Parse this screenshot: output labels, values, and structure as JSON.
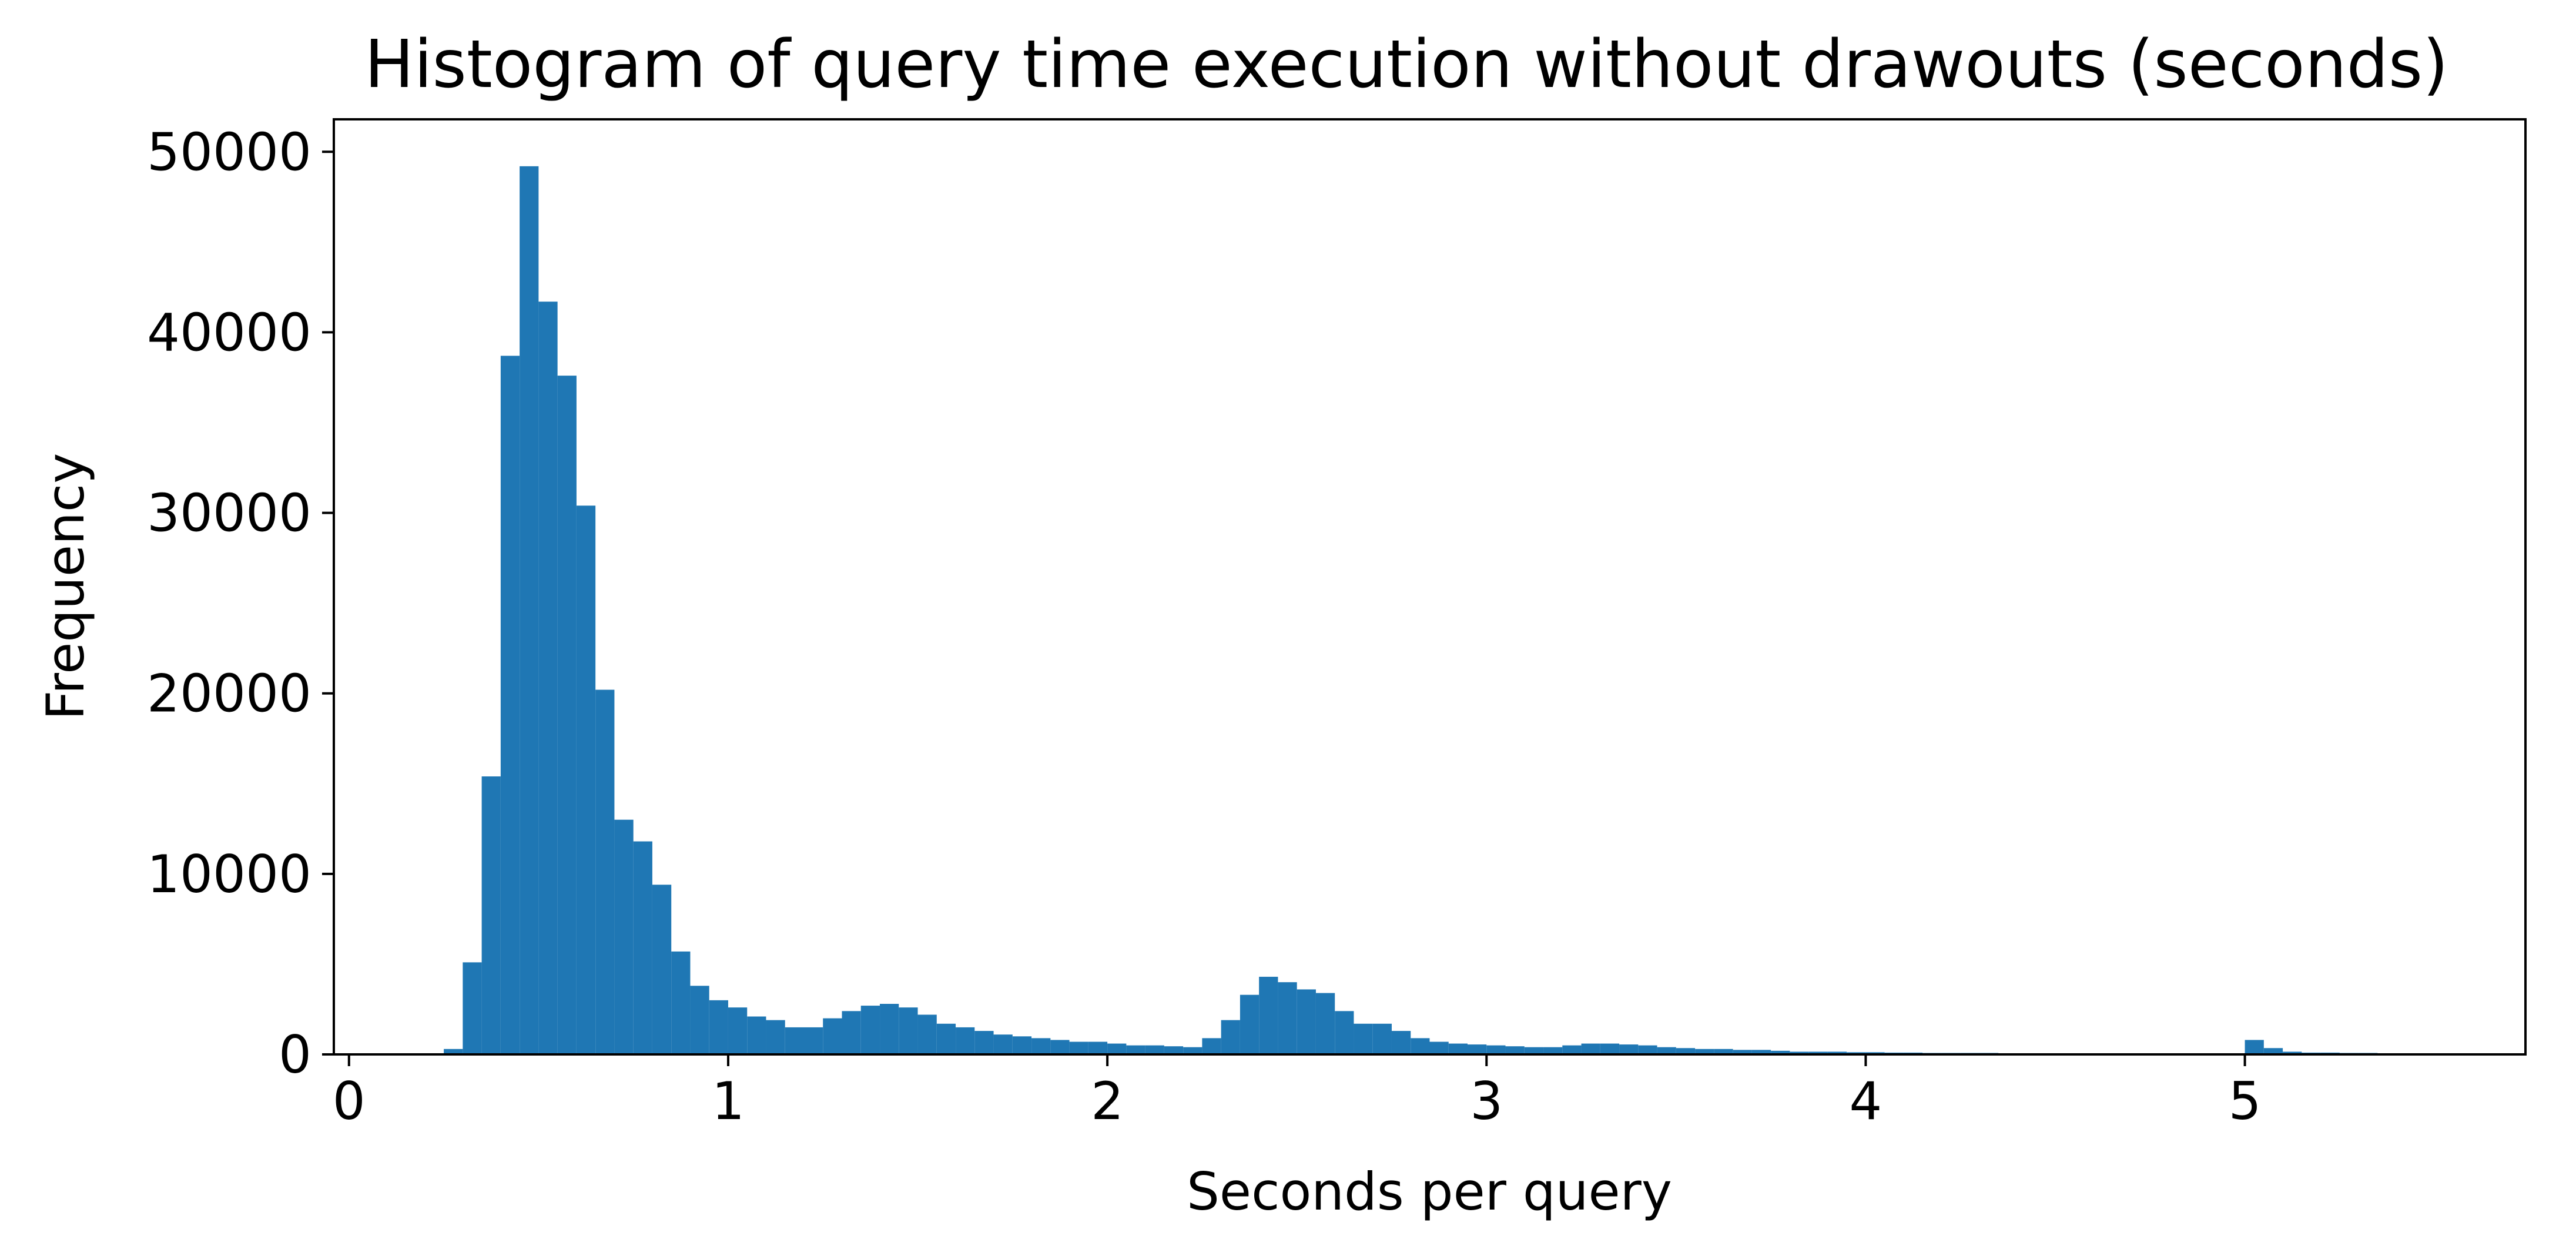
{
  "chart_data": {
    "type": "bar",
    "title": "Histogram of query time execution without drawouts (seconds)",
    "xlabel": "Seconds per query",
    "ylabel": "Frequency",
    "xlim": [
      -0.04,
      5.74
    ],
    "ylim": [
      0,
      51800
    ],
    "x_ticks": [
      0,
      1,
      2,
      3,
      4,
      5
    ],
    "y_ticks": [
      0,
      10000,
      20000,
      30000,
      40000,
      50000
    ],
    "grid": false,
    "legend": "none",
    "bar_color": "#1f77b4",
    "bin_width": 0.05,
    "bins_start": [
      0.0,
      0.05,
      0.1,
      0.15,
      0.2,
      0.25,
      0.3,
      0.35,
      0.4,
      0.45,
      0.5,
      0.55,
      0.6,
      0.65,
      0.7,
      0.75,
      0.8,
      0.85,
      0.9,
      0.95,
      1.0,
      1.05,
      1.1,
      1.15,
      1.2,
      1.25,
      1.3,
      1.35,
      1.4,
      1.45,
      1.5,
      1.55,
      1.6,
      1.65,
      1.7,
      1.75,
      1.8,
      1.85,
      1.9,
      1.95,
      2.0,
      2.05,
      2.1,
      2.15,
      2.2,
      2.25,
      2.3,
      2.35,
      2.4,
      2.45,
      2.5,
      2.55,
      2.6,
      2.65,
      2.7,
      2.75,
      2.8,
      2.85,
      2.9,
      2.95,
      3.0,
      3.05,
      3.1,
      3.15,
      3.2,
      3.25,
      3.3,
      3.35,
      3.4,
      3.45,
      3.5,
      3.55,
      3.6,
      3.65,
      3.7,
      3.75,
      3.8,
      3.85,
      3.9,
      3.95,
      4.0,
      4.05,
      4.1,
      4.15,
      4.2,
      4.25,
      4.3,
      4.35,
      4.4,
      4.45,
      4.5,
      4.55,
      4.6,
      4.65,
      4.7,
      4.75,
      4.8,
      4.85,
      4.9,
      4.95,
      5.0,
      5.05,
      5.1,
      5.15,
      5.2,
      5.25,
      5.3,
      5.35,
      5.4,
      5.45
    ],
    "values": [
      0,
      0,
      0,
      0,
      0,
      300,
      5100,
      15400,
      38700,
      49200,
      41700,
      37600,
      30400,
      20200,
      13000,
      11800,
      9400,
      5700,
      3800,
      3000,
      2600,
      2100,
      1900,
      1500,
      1500,
      2000,
      2400,
      2700,
      2800,
      2600,
      2200,
      1700,
      1500,
      1300,
      1100,
      1000,
      900,
      800,
      700,
      700,
      600,
      500,
      500,
      450,
      400,
      900,
      1900,
      3300,
      4300,
      4000,
      3600,
      3400,
      2400,
      1700,
      1700,
      1300,
      900,
      700,
      600,
      550,
      500,
      450,
      400,
      400,
      500,
      600,
      600,
      550,
      500,
      400,
      350,
      300,
      300,
      250,
      250,
      200,
      150,
      150,
      150,
      120,
      120,
      100,
      100,
      80,
      80,
      80,
      80,
      60,
      60,
      60,
      60,
      50,
      50,
      50,
      50,
      40,
      40,
      40,
      40,
      50,
      800,
      350,
      150,
      100,
      100,
      80,
      80,
      60,
      50,
      40
    ]
  }
}
